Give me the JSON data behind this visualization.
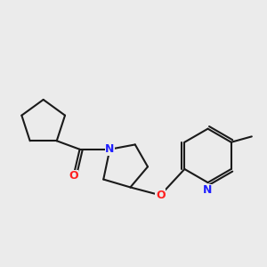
{
  "bg_color": "#ebebeb",
  "bond_color": "#1a1a1a",
  "N_color": "#2020ff",
  "O_color": "#ff2020",
  "lw": 1.5,
  "figsize": [
    3.0,
    3.0
  ],
  "dpi": 100,
  "xlim": [
    0,
    10
  ],
  "ylim": [
    2,
    9
  ]
}
